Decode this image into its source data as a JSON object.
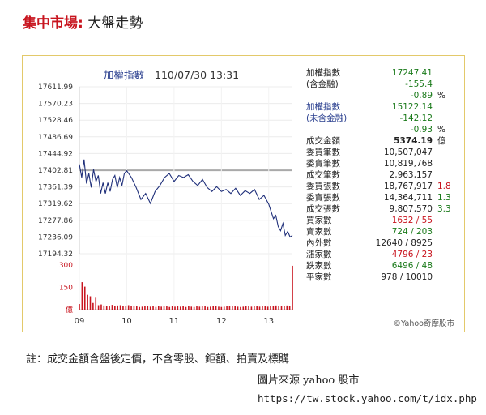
{
  "header": {
    "market": "集中市場:",
    "title": "大盤走勢"
  },
  "chart_header": {
    "index_name": "加權指數",
    "datetime": "110/07/30 13:31"
  },
  "chart_data": {
    "type": "line",
    "title": "加權指數",
    "x_ticks": [
      "09",
      "10",
      "11",
      "12",
      "13"
    ],
    "y_ticks": [
      17611.99,
      17570.23,
      17528.46,
      17486.69,
      17444.92,
      17402.81,
      17361.39,
      17319.62,
      17277.86,
      17236.09,
      17194.32
    ],
    "y_tick_labels": [
      "17611.99",
      "17570.23",
      "17528.46",
      "17486.69",
      "17444.92",
      "17402.81",
      "17361.39",
      "17319.62",
      "17277.86",
      "17236.09",
      "17194.32"
    ],
    "ylim": [
      17194.32,
      17611.99
    ],
    "reference_level": 17402.81,
    "series": [
      {
        "x": [
          9.0,
          9.05,
          9.1,
          9.15,
          9.2,
          9.25,
          9.3,
          9.35,
          9.4,
          9.45,
          9.5,
          9.55,
          9.6,
          9.65,
          9.7,
          9.75,
          9.8,
          9.85,
          9.9,
          9.95,
          10.0,
          10.1,
          10.2,
          10.3,
          10.4,
          10.5,
          10.6,
          10.7,
          10.8,
          10.9,
          11.0,
          11.1,
          11.2,
          11.3,
          11.4,
          11.5,
          11.6,
          11.7,
          11.8,
          11.9,
          12.0,
          12.1,
          12.2,
          12.3,
          12.4,
          12.5,
          12.6,
          12.7,
          12.8,
          12.9,
          13.0,
          13.05,
          13.1,
          13.15,
          13.2,
          13.25,
          13.3,
          13.35,
          13.4,
          13.45,
          13.5
        ],
        "y": [
          17418,
          17385,
          17430,
          17370,
          17395,
          17360,
          17405,
          17375,
          17390,
          17345,
          17372,
          17345,
          17372,
          17350,
          17380,
          17390,
          17360,
          17385,
          17365,
          17395,
          17402,
          17385,
          17360,
          17330,
          17345,
          17320,
          17350,
          17365,
          17385,
          17395,
          17375,
          17390,
          17385,
          17392,
          17375,
          17365,
          17380,
          17360,
          17350,
          17362,
          17350,
          17355,
          17345,
          17358,
          17340,
          17352,
          17345,
          17355,
          17330,
          17340,
          17318,
          17300,
          17282,
          17290,
          17262,
          17252,
          17270,
          17240,
          17250,
          17236,
          17240
        ]
      }
    ],
    "volume_axis": {
      "ticks": [
        0,
        150,
        300
      ],
      "labels": [
        "億",
        "150",
        "300"
      ]
    },
    "volume_series": [
      38,
      185,
      155,
      100,
      90,
      45,
      80,
      30,
      35,
      28,
      25,
      22,
      32,
      25,
      28,
      30,
      26,
      24,
      30,
      22,
      25,
      24,
      18,
      20,
      22,
      25,
      20,
      22,
      18,
      26,
      20,
      22,
      24,
      18,
      22,
      20,
      26,
      20,
      22,
      18,
      24,
      20,
      18,
      22,
      20,
      25,
      22,
      18,
      20,
      22,
      24,
      20,
      18,
      20,
      22,
      24,
      26,
      22,
      20,
      18,
      20,
      22,
      24,
      20,
      22,
      24,
      20,
      22,
      26,
      20,
      22,
      25,
      28,
      24,
      22,
      26,
      28,
      25,
      295
    ]
  },
  "stats": {
    "rows": [
      {
        "label": "加權指數",
        "value": "17247.41",
        "extra": "",
        "label_style": "plain",
        "value_style": "green"
      },
      {
        "label": "(含金融)",
        "value": "-155.4",
        "extra": "",
        "label_style": "plain",
        "value_style": "green"
      },
      {
        "label": "",
        "value": "-0.89",
        "extra": "%",
        "label_style": "plain",
        "value_style": "green"
      },
      {
        "label": "加權指數",
        "value": "15122.14",
        "extra": "",
        "label_style": "blue",
        "value_style": "green"
      },
      {
        "label": "(未含金融)",
        "value": "-142.12",
        "extra": "",
        "label_style": "blue",
        "value_style": "green"
      },
      {
        "label": "",
        "value": "-0.93",
        "extra": "%",
        "label_style": "plain",
        "value_style": "green"
      },
      {
        "label": "成交金額",
        "value": "5374.19",
        "extra": "億",
        "label_style": "plain",
        "value_style": "bold"
      },
      {
        "label": "委買筆數",
        "value": "10,507,047",
        "extra": "",
        "label_style": "plain",
        "value_style": "plain"
      },
      {
        "label": "委賣筆數",
        "value": "10,819,768",
        "extra": "",
        "label_style": "plain",
        "value_style": "plain"
      },
      {
        "label": "成交筆數",
        "value": "2,963,157",
        "extra": "",
        "label_style": "plain",
        "value_style": "plain"
      },
      {
        "label": "委買張數",
        "value": "18,767,917",
        "extra": "1.8",
        "label_style": "plain",
        "value_style": "plain",
        "extra_style": "red"
      },
      {
        "label": "委賣張數",
        "value": "14,364,711",
        "extra": "1.3",
        "label_style": "plain",
        "value_style": "plain",
        "extra_style": "green"
      },
      {
        "label": "成交張數",
        "value": "9,807,570",
        "extra": "3.3",
        "label_style": "plain",
        "value_style": "plain",
        "extra_style": "green"
      },
      {
        "label": "買家數",
        "value": "1632 / 55",
        "extra": "",
        "label_style": "plain",
        "value_style": "red"
      },
      {
        "label": "賣家數",
        "value": "724 / 203",
        "extra": "",
        "label_style": "plain",
        "value_style": "green"
      },
      {
        "label": "內外數",
        "value": "12640 / 8925",
        "extra": "",
        "label_style": "plain",
        "value_style": "plain"
      },
      {
        "label": "漲家數",
        "value": "4796 / 23",
        "extra": "",
        "label_style": "plain",
        "value_style": "red"
      },
      {
        "label": "跌家數",
        "value": "6496 / 48",
        "extra": "",
        "label_style": "plain",
        "value_style": "green"
      },
      {
        "label": "平家數",
        "value": "978 / 10010",
        "extra": "",
        "label_style": "plain",
        "value_style": "plain"
      }
    ]
  },
  "source_label": "©Yahoo奇摩股市",
  "footer": {
    "note": "註：成交金額含盤後定價，不含零股、鉅額、拍賣及標購",
    "credit": "圖片來源 yahoo 股市",
    "url": "https://tw.stock.yahoo.com/t/idx.php"
  },
  "colors": {
    "line": "#1f2f7a",
    "volume": "#c8141e",
    "reference": "#a9a9a9",
    "border": "#e3c96a",
    "up": "#c8141e",
    "down": "#1a7a1a"
  }
}
